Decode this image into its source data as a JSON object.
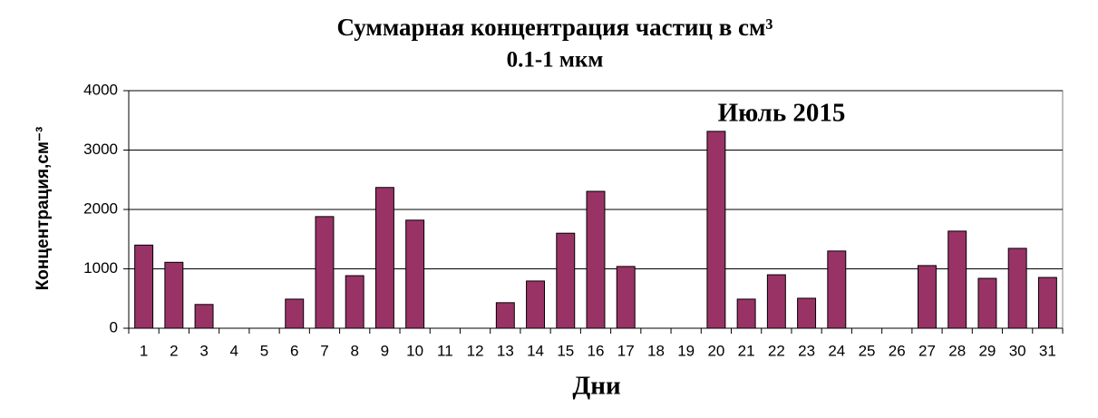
{
  "chart_data": {
    "type": "bar",
    "title": "Суммарная  концентрация  частиц  в см³",
    "subtitle": "0.1-1 мкм",
    "annotation": "Июль 2015",
    "x_label": "Дни",
    "y_label": "Концентрация,см⁻³",
    "categories": [
      "1",
      "2",
      "3",
      "4",
      "5",
      "6",
      "7",
      "8",
      "9",
      "10",
      "11",
      "12",
      "13",
      "14",
      "15",
      "16",
      "17",
      "18",
      "19",
      "20",
      "21",
      "22",
      "23",
      "24",
      "25",
      "26",
      "27",
      "28",
      "29",
      "30",
      "31"
    ],
    "values": [
      1400,
      1110,
      400,
      0,
      0,
      490,
      1880,
      885,
      2370,
      1820,
      0,
      0,
      430,
      795,
      1600,
      2305,
      1040,
      0,
      0,
      3315,
      490,
      900,
      505,
      1300,
      0,
      0,
      1055,
      1635,
      840,
      1345,
      855
    ],
    "color": "#993366",
    "ylim": [
      0,
      4000
    ],
    "yticks": [
      0,
      1000,
      2000,
      3000,
      4000
    ],
    "grid": true
  }
}
